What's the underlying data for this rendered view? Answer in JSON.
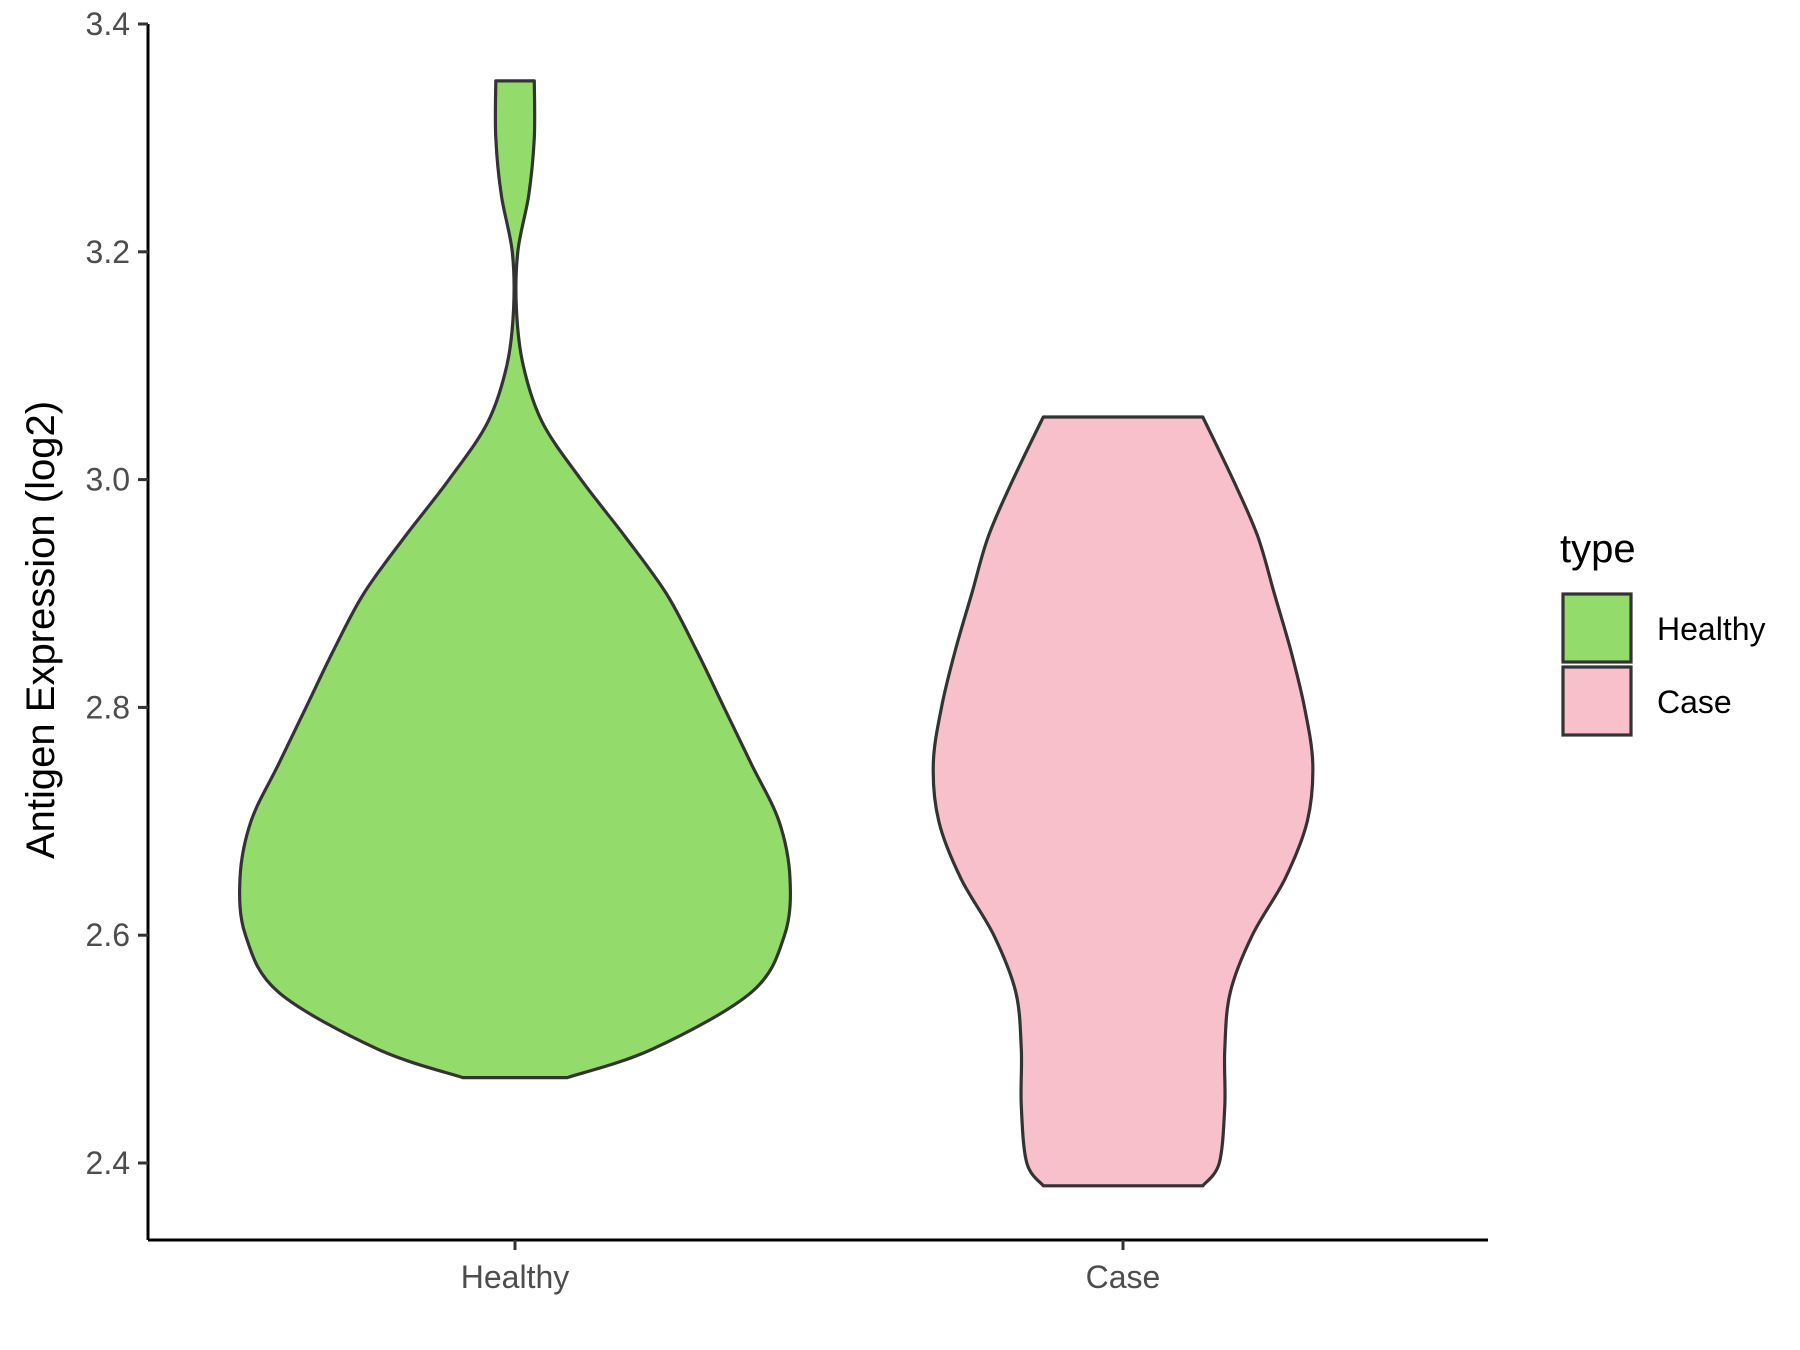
{
  "chart_data": {
    "type": "violin",
    "title": "",
    "xlabel": "",
    "ylabel": "Antigen Expression (log2)",
    "ylim": [
      2.33,
      3.4
    ],
    "yticks": [
      "2.4",
      "2.6",
      "2.8",
      "3.0",
      "3.2",
      "3.4"
    ],
    "categories": [
      "Healthy",
      "Case"
    ],
    "grid": false,
    "legend": {
      "title": "type",
      "position": "right",
      "items": [
        {
          "label": "Healthy",
          "color": "#93dc6b"
        },
        {
          "label": "Case",
          "color": "#f7c0cb"
        }
      ]
    },
    "series": [
      {
        "category": "Healthy",
        "color": "#93dc6b",
        "min": 2.475,
        "max": 3.35,
        "density_profile": [
          {
            "y": 2.475,
            "w": 0.19
          },
          {
            "y": 2.5,
            "w": 0.5
          },
          {
            "y": 2.55,
            "w": 0.86
          },
          {
            "y": 2.6,
            "w": 0.98
          },
          {
            "y": 2.65,
            "w": 1.0
          },
          {
            "y": 2.7,
            "w": 0.96
          },
          {
            "y": 2.75,
            "w": 0.86
          },
          {
            "y": 2.8,
            "w": 0.76
          },
          {
            "y": 2.85,
            "w": 0.66
          },
          {
            "y": 2.9,
            "w": 0.55
          },
          {
            "y": 2.95,
            "w": 0.4
          },
          {
            "y": 3.0,
            "w": 0.24
          },
          {
            "y": 3.05,
            "w": 0.1
          },
          {
            "y": 3.1,
            "w": 0.03
          },
          {
            "y": 3.15,
            "w": 0.005
          },
          {
            "y": 3.2,
            "w": 0.01
          },
          {
            "y": 3.25,
            "w": 0.05
          },
          {
            "y": 3.3,
            "w": 0.07
          },
          {
            "y": 3.35,
            "w": 0.07
          }
        ]
      },
      {
        "category": "Case",
        "color": "#f7c0cb",
        "min": 2.38,
        "max": 3.055,
        "density_profile": [
          {
            "y": 2.38,
            "w": 0.29
          },
          {
            "y": 2.4,
            "w": 0.35
          },
          {
            "y": 2.45,
            "w": 0.37
          },
          {
            "y": 2.5,
            "w": 0.37
          },
          {
            "y": 2.55,
            "w": 0.39
          },
          {
            "y": 2.6,
            "w": 0.47
          },
          {
            "y": 2.65,
            "w": 0.59
          },
          {
            "y": 2.7,
            "w": 0.67
          },
          {
            "y": 2.75,
            "w": 0.69
          },
          {
            "y": 2.8,
            "w": 0.66
          },
          {
            "y": 2.85,
            "w": 0.61
          },
          {
            "y": 2.9,
            "w": 0.55
          },
          {
            "y": 2.95,
            "w": 0.49
          },
          {
            "y": 3.0,
            "w": 0.4
          },
          {
            "y": 3.055,
            "w": 0.29
          }
        ]
      }
    ]
  }
}
